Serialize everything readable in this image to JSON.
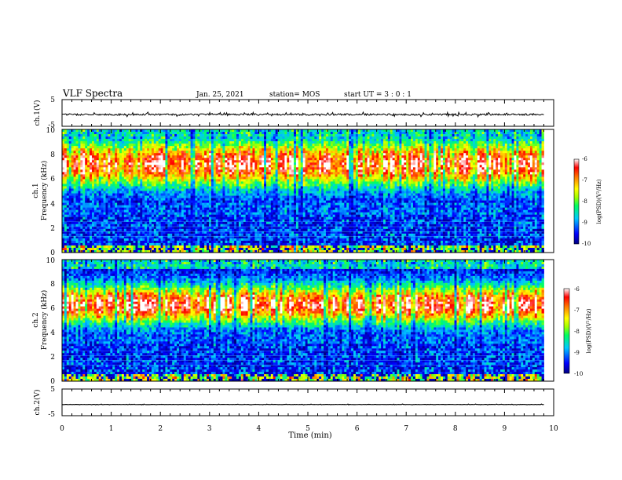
{
  "header": {
    "title": "VLF Spectra",
    "date": "Jan. 25, 2021",
    "station": "station= MOS",
    "start": "start UT =  3 : 0 : 1"
  },
  "chart_data": [
    {
      "type": "line",
      "name": "ch1-waveform",
      "ylabel": "ch.1(V)",
      "xlim": [
        0,
        10
      ],
      "ylim": [
        -5,
        5
      ],
      "yticks": [
        "5",
        "-5"
      ],
      "baseline": -0.6
    },
    {
      "type": "heatmap",
      "name": "ch1-spectrogram",
      "ylabel_line1": "ch.1",
      "ylabel_line2": "Frequency (kHz)",
      "xlim": [
        0,
        9.8
      ],
      "ylim": [
        0,
        10
      ],
      "yticks": [
        "0",
        "2",
        "4",
        "6",
        "8",
        "10"
      ],
      "colorbar": {
        "label": "log(PSD)(V²/Hz)",
        "range": [
          -10,
          -6
        ],
        "ticks": [
          "-6",
          "-7",
          "-8",
          "-9",
          "-10"
        ]
      },
      "band_center_khz": 7.2,
      "band_width_khz": 1.9
    },
    {
      "type": "heatmap",
      "name": "ch2-spectrogram",
      "ylabel_line1": "ch.2",
      "ylabel_line2": "Frequency (kHz)",
      "xlim": [
        0,
        9.8
      ],
      "ylim": [
        0,
        10
      ],
      "yticks": [
        "0",
        "2",
        "4",
        "6",
        "8",
        "10"
      ],
      "colorbar": {
        "label": "log(PSD)(V²/Hz)",
        "range": [
          -10,
          -6
        ],
        "ticks": [
          "-6",
          "-7",
          "-8",
          "-9",
          "-10"
        ]
      },
      "band_center_khz": 6.3,
      "band_width_khz": 1.6
    },
    {
      "type": "line",
      "name": "ch2-waveform",
      "ylabel": "ch.2(V)",
      "xlim": [
        0,
        10
      ],
      "ylim": [
        -5,
        5
      ],
      "yticks": [
        "5",
        "-5"
      ],
      "baseline": -0.8
    }
  ],
  "xaxis": {
    "label": "Time (min)",
    "ticks": [
      "0",
      "1",
      "2",
      "3",
      "4",
      "5",
      "6",
      "7",
      "8",
      "9",
      "10"
    ]
  },
  "colormap": [
    "#000080",
    "#0000ff",
    "#00aaff",
    "#00ffff",
    "#00ff00",
    "#ffff00",
    "#ff8000",
    "#ff0000",
    "#ffffff"
  ]
}
